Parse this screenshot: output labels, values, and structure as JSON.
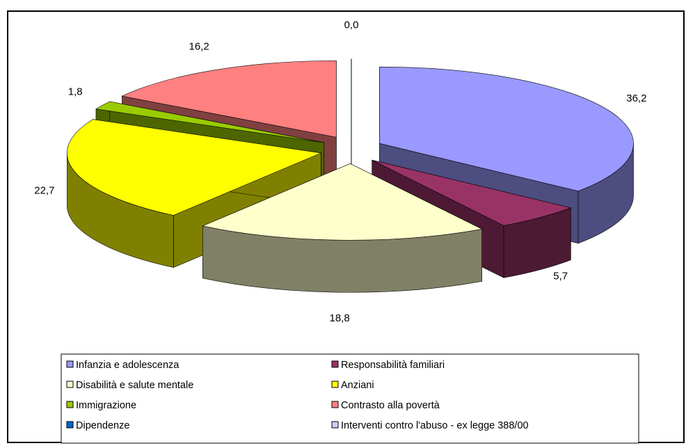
{
  "chart_data": {
    "type": "pie",
    "categories": [
      "Infanzia e adolescenza",
      "Responsabilità familiari",
      "Disabilità e salute mentale",
      "Anziani",
      "Immigrazione",
      "Contrasto alla povertà",
      "Dipendenze",
      "Interventi contro l'abuso - ex legge 388/00"
    ],
    "values": [
      36.2,
      5.7,
      18.8,
      22.7,
      1.8,
      16.2,
      0.0,
      0
    ],
    "value_labels": [
      "36,2",
      "5,7",
      "18,8",
      "22,7",
      "1,8",
      "16,2",
      "0,0",
      null
    ],
    "colors": [
      "#9999ff",
      "#993366",
      "#ffffcc",
      "#ffff00",
      "#99cc00",
      "#ff8080",
      "#0066cc",
      "#ccccff"
    ],
    "legend": "bottom"
  }
}
